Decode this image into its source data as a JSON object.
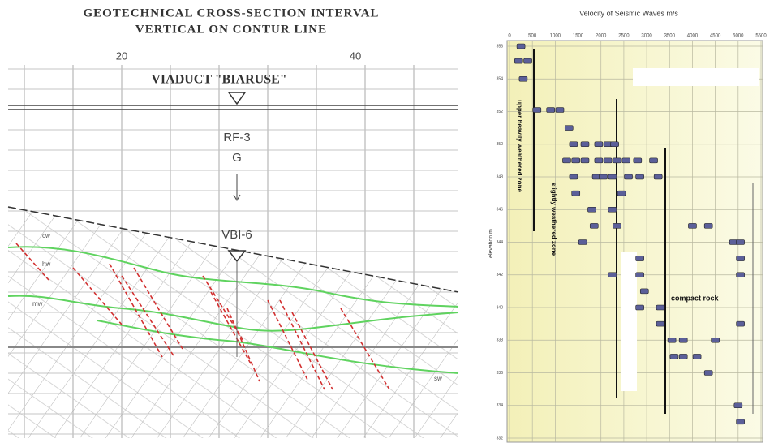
{
  "cross_section": {
    "title": [
      "GEOTECHNICAL CROSS-SECTION INTERVAL",
      "VERTICAL ON CONTUR LINE"
    ],
    "scale_labels": [
      "20",
      "40"
    ],
    "viaduct": "VIADUCT \"BIARUSE\"",
    "borehole_labels": [
      "RF-3",
      "G",
      "VBI-6"
    ],
    "zone_labels": [
      "cw",
      "hw",
      "mw",
      "sw"
    ]
  },
  "chart_data": {
    "type": "scatter",
    "title": "Velocity of Seismic Waves m/s",
    "y_label": "elevation m",
    "color": "#5b5f99",
    "x": [
      250,
      200,
      400,
      300,
      600,
      900,
      1100,
      1300,
      1400,
      1650,
      1950,
      2150,
      2300,
      1250,
      1450,
      1650,
      1950,
      2150,
      2350,
      2550,
      2800,
      3150,
      1400,
      1900,
      2050,
      2250,
      2600,
      2850,
      3250,
      1450,
      2450,
      1800,
      2250,
      1850,
      2350,
      1600,
      4000,
      4350,
      4900,
      5050,
      2850,
      5050,
      2250,
      2850,
      5050,
      2950,
      2850,
      3300,
      3300,
      5050,
      3550,
      3800,
      4500,
      3600,
      3800,
      4100,
      4350,
      5000,
      5050
    ],
    "values": [
      356,
      355.1,
      355.1,
      354,
      352.1,
      352.1,
      352.1,
      351,
      350,
      350,
      350,
      350,
      350,
      349,
      349,
      349,
      349,
      349,
      349,
      349,
      349,
      349,
      348,
      348,
      348,
      348,
      348,
      348,
      348,
      347,
      347,
      346,
      346,
      345,
      345,
      344,
      345,
      345,
      344,
      344,
      343,
      343,
      342,
      342,
      342,
      341,
      340,
      340,
      339,
      339,
      338,
      338,
      338,
      337,
      337,
      337,
      336,
      334,
      333
    ],
    "xlim": [
      0,
      5500
    ],
    "xticks": [
      0,
      500,
      1000,
      1500,
      2000,
      2500,
      3000,
      3500,
      4000,
      4500,
      5000,
      5500
    ],
    "ylim": [
      332,
      356
    ],
    "yticks": [
      356,
      354,
      352,
      350,
      348,
      346,
      344,
      342,
      340,
      338,
      336,
      334,
      332
    ],
    "annotations": [
      "upper heavily weathered zone",
      "slightly weathered zone",
      "compact rock"
    ],
    "grid": true
  }
}
